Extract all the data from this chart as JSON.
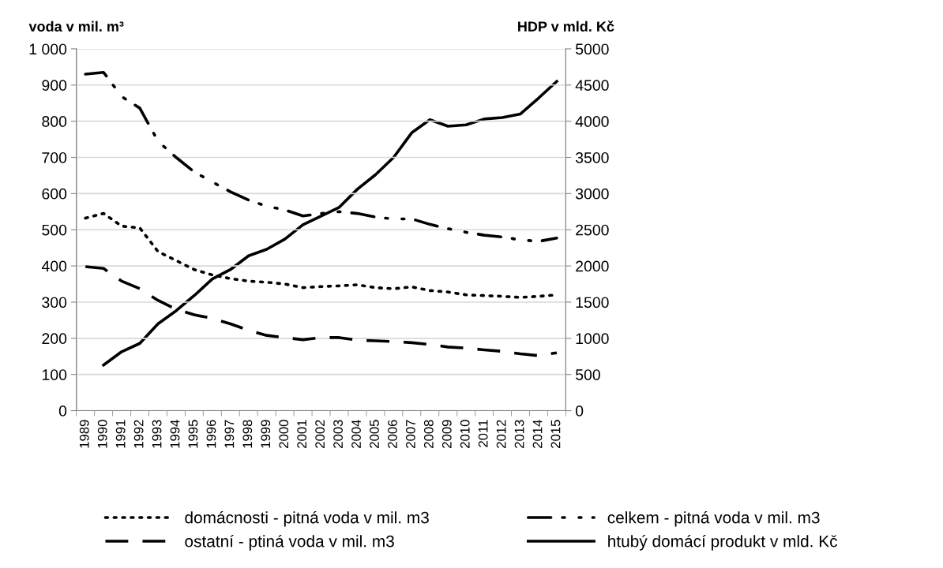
{
  "chart_data": {
    "type": "line",
    "ylabel": "voda v mil. m³",
    "y2label": "HDP v mld. Kč",
    "categories": [
      "1989",
      "1990",
      "1991",
      "1992",
      "1993",
      "1994",
      "1995",
      "1996",
      "1997",
      "1998",
      "1999",
      "2000",
      "2001",
      "2002",
      "2003",
      "2004",
      "2005",
      "2006",
      "2007",
      "2008",
      "2009",
      "2010",
      "2011",
      "2012",
      "2013",
      "2014",
      "2015"
    ],
    "series": [
      {
        "name": "domácnosti - pitná voda v mil. m3",
        "color": "#000000",
        "line_style": "dotted",
        "values": [
          532,
          545,
          510,
          505,
          440,
          415,
          390,
          375,
          365,
          358,
          355,
          350,
          340,
          343,
          345,
          348,
          340,
          337,
          342,
          332,
          328,
          320,
          318,
          316,
          313,
          316,
          320
        ]
      },
      {
        "name": "ostatní - ptiná voda v mil. m3",
        "color": "#000000",
        "line_style": "dashed",
        "values": [
          398,
          393,
          358,
          337,
          305,
          280,
          265,
          255,
          240,
          222,
          208,
          202,
          196,
          202,
          202,
          195,
          193,
          191,
          188,
          183,
          176,
          173,
          168,
          164,
          157,
          152,
          160
        ]
      },
      {
        "name": "celkem - pitná voda v mil. m3",
        "color": "#000000",
        "line_style": "dashdot",
        "values": [
          930,
          935,
          868,
          836,
          745,
          700,
          660,
          632,
          605,
          582,
          565,
          555,
          538,
          545,
          550,
          545,
          535,
          530,
          530,
          515,
          503,
          493,
          485,
          480,
          472,
          468,
          477
        ]
      },
      {
        "name": "htubý domácí produkt v mld. Kč",
        "color": "#000000",
        "line_style": "solid",
        "axis": "y2",
        "values": [
          null,
          630,
          815,
          930,
          1200,
          1380,
          1590,
          1820,
          1950,
          2140,
          2230,
          2370,
          2570,
          2690,
          2810,
          3060,
          3260,
          3500,
          3840,
          4020,
          3930,
          3950,
          4030,
          4050,
          4100,
          4320,
          4550
        ]
      }
    ],
    "ylim": [
      0,
      1000
    ],
    "yticks": [
      0,
      100,
      200,
      300,
      400,
      500,
      600,
      700,
      800,
      900,
      {
        "value": 1000,
        "label": "1 000"
      }
    ],
    "y2lim": [
      0,
      5000
    ],
    "y2ticks": [
      0,
      500,
      1000,
      1500,
      2000,
      2500,
      3000,
      3500,
      4000,
      4500,
      5000
    ],
    "grid": "y",
    "legend": "bottom"
  }
}
